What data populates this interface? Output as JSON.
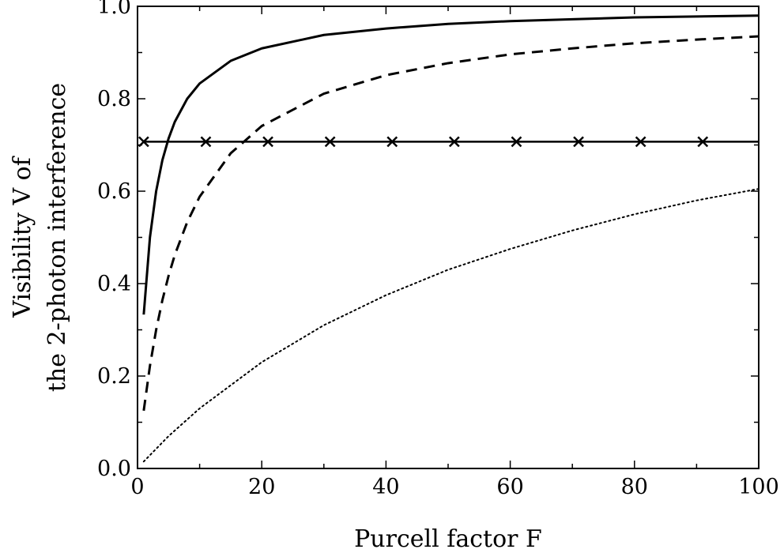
{
  "chart_data": {
    "type": "line",
    "title": "",
    "xlabel": "Purcell factor F",
    "ylabel_lines": [
      "Visibility V of",
      "the 2-photon interference"
    ],
    "xlim": [
      0,
      100
    ],
    "ylim": [
      0,
      1
    ],
    "x_ticks": [
      0,
      20,
      40,
      60,
      80,
      100
    ],
    "x_tick_labels": [
      "0",
      "20",
      "40",
      "60",
      "80",
      "100"
    ],
    "y_ticks": [
      0,
      0.2,
      0.4,
      0.6,
      0.8,
      1.0
    ],
    "y_tick_labels": [
      "0.0",
      "0.2",
      "0.4",
      "0.6",
      "0.8",
      "1.0"
    ],
    "grid": false,
    "legend": "none",
    "series": [
      {
        "style": "solid",
        "x": [
          1,
          2,
          3,
          4,
          5,
          6,
          8,
          10,
          15,
          20,
          30,
          40,
          50,
          60,
          70,
          80,
          90,
          100
        ],
        "y": [
          0.333,
          0.5,
          0.6,
          0.667,
          0.714,
          0.75,
          0.8,
          0.833,
          0.882,
          0.909,
          0.938,
          0.952,
          0.962,
          0.968,
          0.972,
          0.976,
          0.978,
          0.98
        ]
      },
      {
        "style": "dashed",
        "x": [
          1,
          2,
          3,
          4,
          5,
          6,
          8,
          10,
          15,
          20,
          30,
          40,
          50,
          60,
          70,
          80,
          90,
          100
        ],
        "y": [
          0.125,
          0.222,
          0.3,
          0.364,
          0.417,
          0.462,
          0.533,
          0.588,
          0.682,
          0.741,
          0.811,
          0.851,
          0.877,
          0.896,
          0.909,
          0.92,
          0.928,
          0.935
        ]
      },
      {
        "style": "dotted",
        "x": [
          1,
          5,
          10,
          15,
          20,
          30,
          40,
          50,
          60,
          70,
          80,
          90,
          100
        ],
        "y": [
          0.015,
          0.07,
          0.13,
          0.18,
          0.23,
          0.31,
          0.375,
          0.43,
          0.475,
          0.515,
          0.55,
          0.58,
          0.605
        ]
      },
      {
        "style": "solid-with-x-markers",
        "x": [
          1,
          100
        ],
        "y": [
          0.707,
          0.707
        ],
        "marker_x": [
          1,
          11,
          21,
          31,
          41,
          51,
          61,
          71,
          81,
          91
        ],
        "marker_y": 0.707
      }
    ]
  }
}
